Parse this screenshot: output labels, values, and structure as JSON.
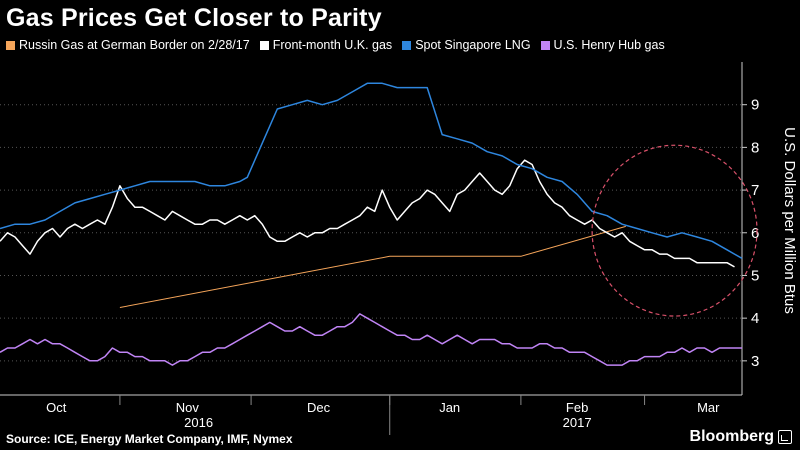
{
  "title": "Gas Prices Get Closer to Parity",
  "source": "Source: ICE, Energy Market Company, IMF, Nymex",
  "brand": "Bloomberg",
  "chart_data": {
    "type": "line",
    "ylabel": "U.S. Dollars per Million Btus",
    "ylim": [
      2.2,
      10.0
    ],
    "yticks": [
      "3",
      "4",
      "5",
      "6",
      "7",
      "8",
      "9"
    ],
    "xlim": [
      0,
      198
    ],
    "month_labels": [
      {
        "label": "Oct",
        "x": 15
      },
      {
        "label": "Nov",
        "x": 50
      },
      {
        "label": "Dec",
        "x": 85
      },
      {
        "label": "Jan",
        "x": 120
      },
      {
        "label": "Feb",
        "x": 154
      },
      {
        "label": "Mar",
        "x": 189
      }
    ],
    "year_labels": [
      {
        "label": "2016",
        "x": 53
      },
      {
        "label": "2017",
        "x": 154
      }
    ],
    "year_divider_x": 104,
    "legend": [
      "Russin Gas at German Border on 2/28/17",
      "Front-month U.K. gas",
      "Spot Singapore LNG",
      "U.S. Henry Hub gas"
    ],
    "series": [
      {
        "name": "Russin Gas at German Border on 2/28/17",
        "color": "#f5a55a",
        "points": [
          [
            32,
            4.25
          ],
          [
            104,
            5.45
          ],
          [
            139,
            5.45
          ],
          [
            167,
            6.15
          ]
        ]
      },
      {
        "name": "Front-month U.K. gas",
        "color": "#ffffff",
        "points": [
          [
            0,
            5.8
          ],
          [
            2,
            6.0
          ],
          [
            4,
            5.9
          ],
          [
            6,
            5.7
          ],
          [
            8,
            5.5
          ],
          [
            10,
            5.8
          ],
          [
            12,
            6.0
          ],
          [
            14,
            6.1
          ],
          [
            16,
            5.9
          ],
          [
            18,
            6.1
          ],
          [
            20,
            6.2
          ],
          [
            22,
            6.1
          ],
          [
            24,
            6.2
          ],
          [
            26,
            6.3
          ],
          [
            28,
            6.2
          ],
          [
            30,
            6.6
          ],
          [
            32,
            7.1
          ],
          [
            34,
            6.8
          ],
          [
            36,
            6.6
          ],
          [
            38,
            6.6
          ],
          [
            40,
            6.5
          ],
          [
            42,
            6.4
          ],
          [
            44,
            6.3
          ],
          [
            46,
            6.5
          ],
          [
            48,
            6.4
          ],
          [
            50,
            6.3
          ],
          [
            52,
            6.2
          ],
          [
            54,
            6.2
          ],
          [
            56,
            6.3
          ],
          [
            58,
            6.3
          ],
          [
            60,
            6.2
          ],
          [
            62,
            6.3
          ],
          [
            64,
            6.4
          ],
          [
            66,
            6.3
          ],
          [
            68,
            6.4
          ],
          [
            70,
            6.2
          ],
          [
            72,
            5.9
          ],
          [
            74,
            5.8
          ],
          [
            76,
            5.8
          ],
          [
            78,
            5.9
          ],
          [
            80,
            6.0
          ],
          [
            82,
            5.9
          ],
          [
            84,
            6.0
          ],
          [
            86,
            6.0
          ],
          [
            88,
            6.1
          ],
          [
            90,
            6.1
          ],
          [
            92,
            6.2
          ],
          [
            94,
            6.3
          ],
          [
            96,
            6.4
          ],
          [
            98,
            6.6
          ],
          [
            100,
            6.5
          ],
          [
            102,
            7.0
          ],
          [
            104,
            6.6
          ],
          [
            106,
            6.3
          ],
          [
            108,
            6.5
          ],
          [
            110,
            6.7
          ],
          [
            112,
            6.8
          ],
          [
            114,
            7.0
          ],
          [
            116,
            6.9
          ],
          [
            118,
            6.7
          ],
          [
            120,
            6.5
          ],
          [
            122,
            6.9
          ],
          [
            124,
            7.0
          ],
          [
            126,
            7.2
          ],
          [
            128,
            7.4
          ],
          [
            130,
            7.2
          ],
          [
            132,
            7.0
          ],
          [
            134,
            6.9
          ],
          [
            136,
            7.1
          ],
          [
            138,
            7.5
          ],
          [
            140,
            7.7
          ],
          [
            142,
            7.6
          ],
          [
            144,
            7.2
          ],
          [
            146,
            6.9
          ],
          [
            148,
            6.7
          ],
          [
            150,
            6.6
          ],
          [
            152,
            6.4
          ],
          [
            154,
            6.3
          ],
          [
            156,
            6.2
          ],
          [
            158,
            6.3
          ],
          [
            160,
            6.1
          ],
          [
            162,
            6.0
          ],
          [
            164,
            5.9
          ],
          [
            166,
            6.0
          ],
          [
            168,
            5.8
          ],
          [
            170,
            5.7
          ],
          [
            172,
            5.6
          ],
          [
            174,
            5.6
          ],
          [
            176,
            5.5
          ],
          [
            178,
            5.5
          ],
          [
            180,
            5.4
          ],
          [
            182,
            5.4
          ],
          [
            184,
            5.4
          ],
          [
            186,
            5.3
          ],
          [
            188,
            5.3
          ],
          [
            190,
            5.3
          ],
          [
            192,
            5.3
          ],
          [
            194,
            5.3
          ],
          [
            196,
            5.2
          ]
        ]
      },
      {
        "name": "Spot Singapore LNG",
        "color": "#2e86de",
        "points": [
          [
            0,
            6.1
          ],
          [
            4,
            6.2
          ],
          [
            8,
            6.2
          ],
          [
            12,
            6.3
          ],
          [
            16,
            6.5
          ],
          [
            20,
            6.7
          ],
          [
            24,
            6.8
          ],
          [
            28,
            6.9
          ],
          [
            32,
            7.0
          ],
          [
            36,
            7.1
          ],
          [
            40,
            7.2
          ],
          [
            44,
            7.2
          ],
          [
            48,
            7.2
          ],
          [
            52,
            7.2
          ],
          [
            56,
            7.1
          ],
          [
            60,
            7.1
          ],
          [
            64,
            7.2
          ],
          [
            66,
            7.3
          ],
          [
            70,
            8.1
          ],
          [
            74,
            8.9
          ],
          [
            78,
            9.0
          ],
          [
            82,
            9.1
          ],
          [
            86,
            9.0
          ],
          [
            90,
            9.1
          ],
          [
            94,
            9.3
          ],
          [
            98,
            9.5
          ],
          [
            102,
            9.5
          ],
          [
            106,
            9.4
          ],
          [
            110,
            9.4
          ],
          [
            114,
            9.4
          ],
          [
            118,
            8.3
          ],
          [
            122,
            8.2
          ],
          [
            126,
            8.1
          ],
          [
            130,
            7.9
          ],
          [
            134,
            7.8
          ],
          [
            138,
            7.6
          ],
          [
            142,
            7.5
          ],
          [
            146,
            7.3
          ],
          [
            150,
            7.2
          ],
          [
            154,
            6.9
          ],
          [
            158,
            6.5
          ],
          [
            162,
            6.4
          ],
          [
            166,
            6.2
          ],
          [
            170,
            6.1
          ],
          [
            174,
            6.0
          ],
          [
            178,
            5.9
          ],
          [
            182,
            6.0
          ],
          [
            186,
            5.9
          ],
          [
            190,
            5.8
          ],
          [
            194,
            5.6
          ],
          [
            196,
            5.5
          ],
          [
            198,
            5.4
          ]
        ]
      },
      {
        "name": "U.S. Henry Hub gas",
        "color": "#c084f5",
        "points": [
          [
            0,
            3.2
          ],
          [
            2,
            3.3
          ],
          [
            4,
            3.3
          ],
          [
            6,
            3.4
          ],
          [
            8,
            3.5
          ],
          [
            10,
            3.4
          ],
          [
            12,
            3.5
          ],
          [
            14,
            3.4
          ],
          [
            16,
            3.4
          ],
          [
            18,
            3.3
          ],
          [
            20,
            3.2
          ],
          [
            22,
            3.1
          ],
          [
            24,
            3.0
          ],
          [
            26,
            3.0
          ],
          [
            28,
            3.1
          ],
          [
            30,
            3.3
          ],
          [
            32,
            3.2
          ],
          [
            34,
            3.2
          ],
          [
            36,
            3.1
          ],
          [
            38,
            3.1
          ],
          [
            40,
            3.0
          ],
          [
            42,
            3.0
          ],
          [
            44,
            3.0
          ],
          [
            46,
            2.9
          ],
          [
            48,
            3.0
          ],
          [
            50,
            3.0
          ],
          [
            52,
            3.1
          ],
          [
            54,
            3.2
          ],
          [
            56,
            3.2
          ],
          [
            58,
            3.3
          ],
          [
            60,
            3.3
          ],
          [
            62,
            3.4
          ],
          [
            64,
            3.5
          ],
          [
            66,
            3.6
          ],
          [
            68,
            3.7
          ],
          [
            70,
            3.8
          ],
          [
            72,
            3.9
          ],
          [
            74,
            3.8
          ],
          [
            76,
            3.7
          ],
          [
            78,
            3.7
          ],
          [
            80,
            3.8
          ],
          [
            82,
            3.7
          ],
          [
            84,
            3.6
          ],
          [
            86,
            3.6
          ],
          [
            88,
            3.7
          ],
          [
            90,
            3.8
          ],
          [
            92,
            3.8
          ],
          [
            94,
            3.9
          ],
          [
            96,
            4.1
          ],
          [
            98,
            4.0
          ],
          [
            100,
            3.9
          ],
          [
            102,
            3.8
          ],
          [
            104,
            3.7
          ],
          [
            106,
            3.6
          ],
          [
            108,
            3.6
          ],
          [
            110,
            3.5
          ],
          [
            112,
            3.5
          ],
          [
            114,
            3.6
          ],
          [
            116,
            3.5
          ],
          [
            118,
            3.4
          ],
          [
            120,
            3.5
          ],
          [
            122,
            3.6
          ],
          [
            124,
            3.5
          ],
          [
            126,
            3.4
          ],
          [
            128,
            3.5
          ],
          [
            130,
            3.5
          ],
          [
            132,
            3.5
          ],
          [
            134,
            3.4
          ],
          [
            136,
            3.4
          ],
          [
            138,
            3.3
          ],
          [
            140,
            3.3
          ],
          [
            142,
            3.3
          ],
          [
            144,
            3.4
          ],
          [
            146,
            3.4
          ],
          [
            148,
            3.3
          ],
          [
            150,
            3.3
          ],
          [
            152,
            3.2
          ],
          [
            154,
            3.2
          ],
          [
            156,
            3.2
          ],
          [
            158,
            3.1
          ],
          [
            160,
            3.0
          ],
          [
            162,
            2.9
          ],
          [
            164,
            2.9
          ],
          [
            166,
            2.9
          ],
          [
            168,
            3.0
          ],
          [
            170,
            3.0
          ],
          [
            172,
            3.1
          ],
          [
            174,
            3.1
          ],
          [
            176,
            3.1
          ],
          [
            178,
            3.2
          ],
          [
            180,
            3.2
          ],
          [
            182,
            3.3
          ],
          [
            184,
            3.2
          ],
          [
            186,
            3.3
          ],
          [
            188,
            3.3
          ],
          [
            190,
            3.2
          ],
          [
            192,
            3.3
          ],
          [
            194,
            3.3
          ],
          [
            196,
            3.3
          ],
          [
            198,
            3.3
          ]
        ]
      }
    ],
    "highlight_circle": {
      "cx": 180,
      "cy": 6.05,
      "rx": 22,
      "ry": 2.0,
      "color": "#d9516a"
    }
  }
}
